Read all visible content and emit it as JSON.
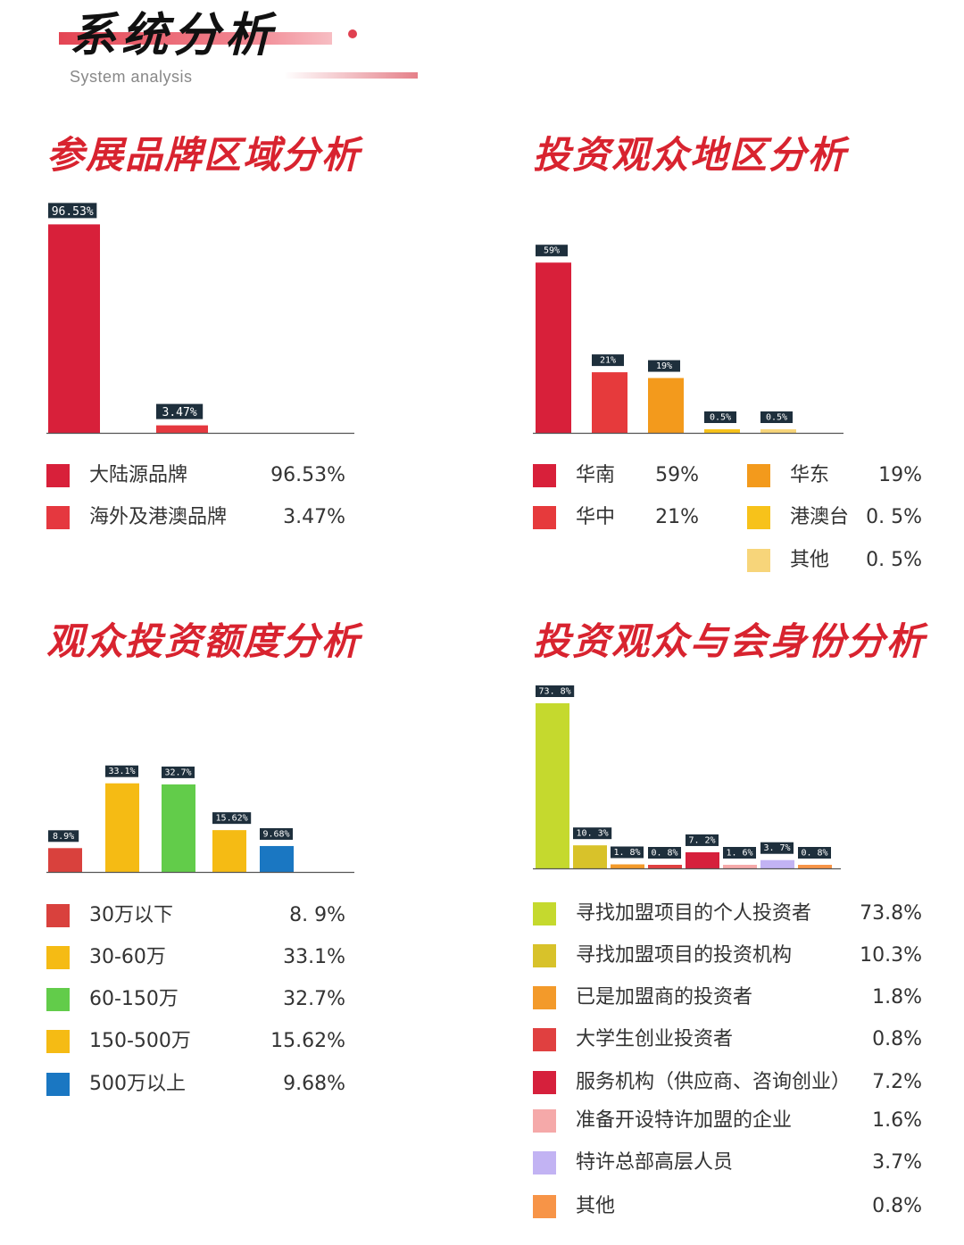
{
  "header": {
    "title": "系统分析",
    "subtitle": "System analysis"
  },
  "chart_data": [
    {
      "id": "brand",
      "type": "bar",
      "title": "参展品牌区域分析",
      "categories": [
        "大陆源品牌",
        "海外及港澳品牌"
      ],
      "values": [
        96.53,
        3.47
      ],
      "data_labels": [
        "96.53%",
        "3.47%"
      ],
      "legend_values": [
        "96.53%",
        "3.47%"
      ],
      "colors": [
        "#d8203a",
        "#e5383f"
      ],
      "ylim": [
        0,
        100
      ]
    },
    {
      "id": "region",
      "type": "bar",
      "title": "投资观众地区分析",
      "categories": [
        "华南",
        "华中",
        "华东",
        "港澳台",
        "其他"
      ],
      "values": [
        59,
        21,
        19,
        0.5,
        0.5
      ],
      "data_labels": [
        "59%",
        "21%",
        "19%",
        "0.5%",
        "0.5%"
      ],
      "legend_values": [
        "59%",
        "21%",
        "19%",
        "0. 5%",
        "0. 5%"
      ],
      "colors": [
        "#d8203a",
        "#e63a3c",
        "#f39a1c",
        "#f7c21a",
        "#f7d57a"
      ],
      "ylim": [
        0,
        60
      ]
    },
    {
      "id": "amount",
      "type": "bar",
      "title": "观众投资额度分析",
      "categories": [
        "30万以下",
        "30-60万",
        "60-150万",
        "150-500万",
        "500万以上"
      ],
      "values": [
        8.9,
        33.1,
        32.7,
        15.62,
        9.68
      ],
      "data_labels": [
        "8.9%",
        "33.1%",
        "32.7%",
        "15.62%",
        "9.68%"
      ],
      "legend_values": [
        "8. 9%",
        "33.1%",
        "32.7%",
        "15.62%",
        "9.68%"
      ],
      "colors": [
        "#d9413d",
        "#f5bb14",
        "#62cc4a",
        "#f5bb14",
        "#1a77c2"
      ],
      "ylim": [
        0,
        40
      ]
    },
    {
      "id": "identity",
      "type": "bar",
      "title": "投资观众与会身份分析",
      "categories": [
        "寻找加盟项目的个人投资者",
        "寻找加盟项目的投资机构",
        "已是加盟商的投资者",
        "大学生创业投资者",
        "服务机构（供应商、咨询创业）",
        "准备开设特许加盟的企业",
        "特许总部高层人员",
        "其他"
      ],
      "values": [
        73.8,
        10.3,
        1.8,
        0.8,
        7.2,
        1.6,
        3.7,
        0.8
      ],
      "data_labels": [
        "73. 8%",
        "10. 3%",
        "1. 8%",
        "0. 8%",
        "7. 2%",
        "1. 6%",
        "3. 7%",
        "0. 8%"
      ],
      "legend_values": [
        "73.8%",
        "10.3%",
        "1.8%",
        "0.8%",
        "7.2%",
        "1.6%",
        "3.7%",
        "0.8%"
      ],
      "colors": [
        "#c5d92e",
        "#d8c22a",
        "#f39a2a",
        "#e04040",
        "#d6203c",
        "#f5a9a9",
        "#c2b3f3",
        "#f79447"
      ],
      "ylim": [
        0,
        75
      ]
    }
  ]
}
